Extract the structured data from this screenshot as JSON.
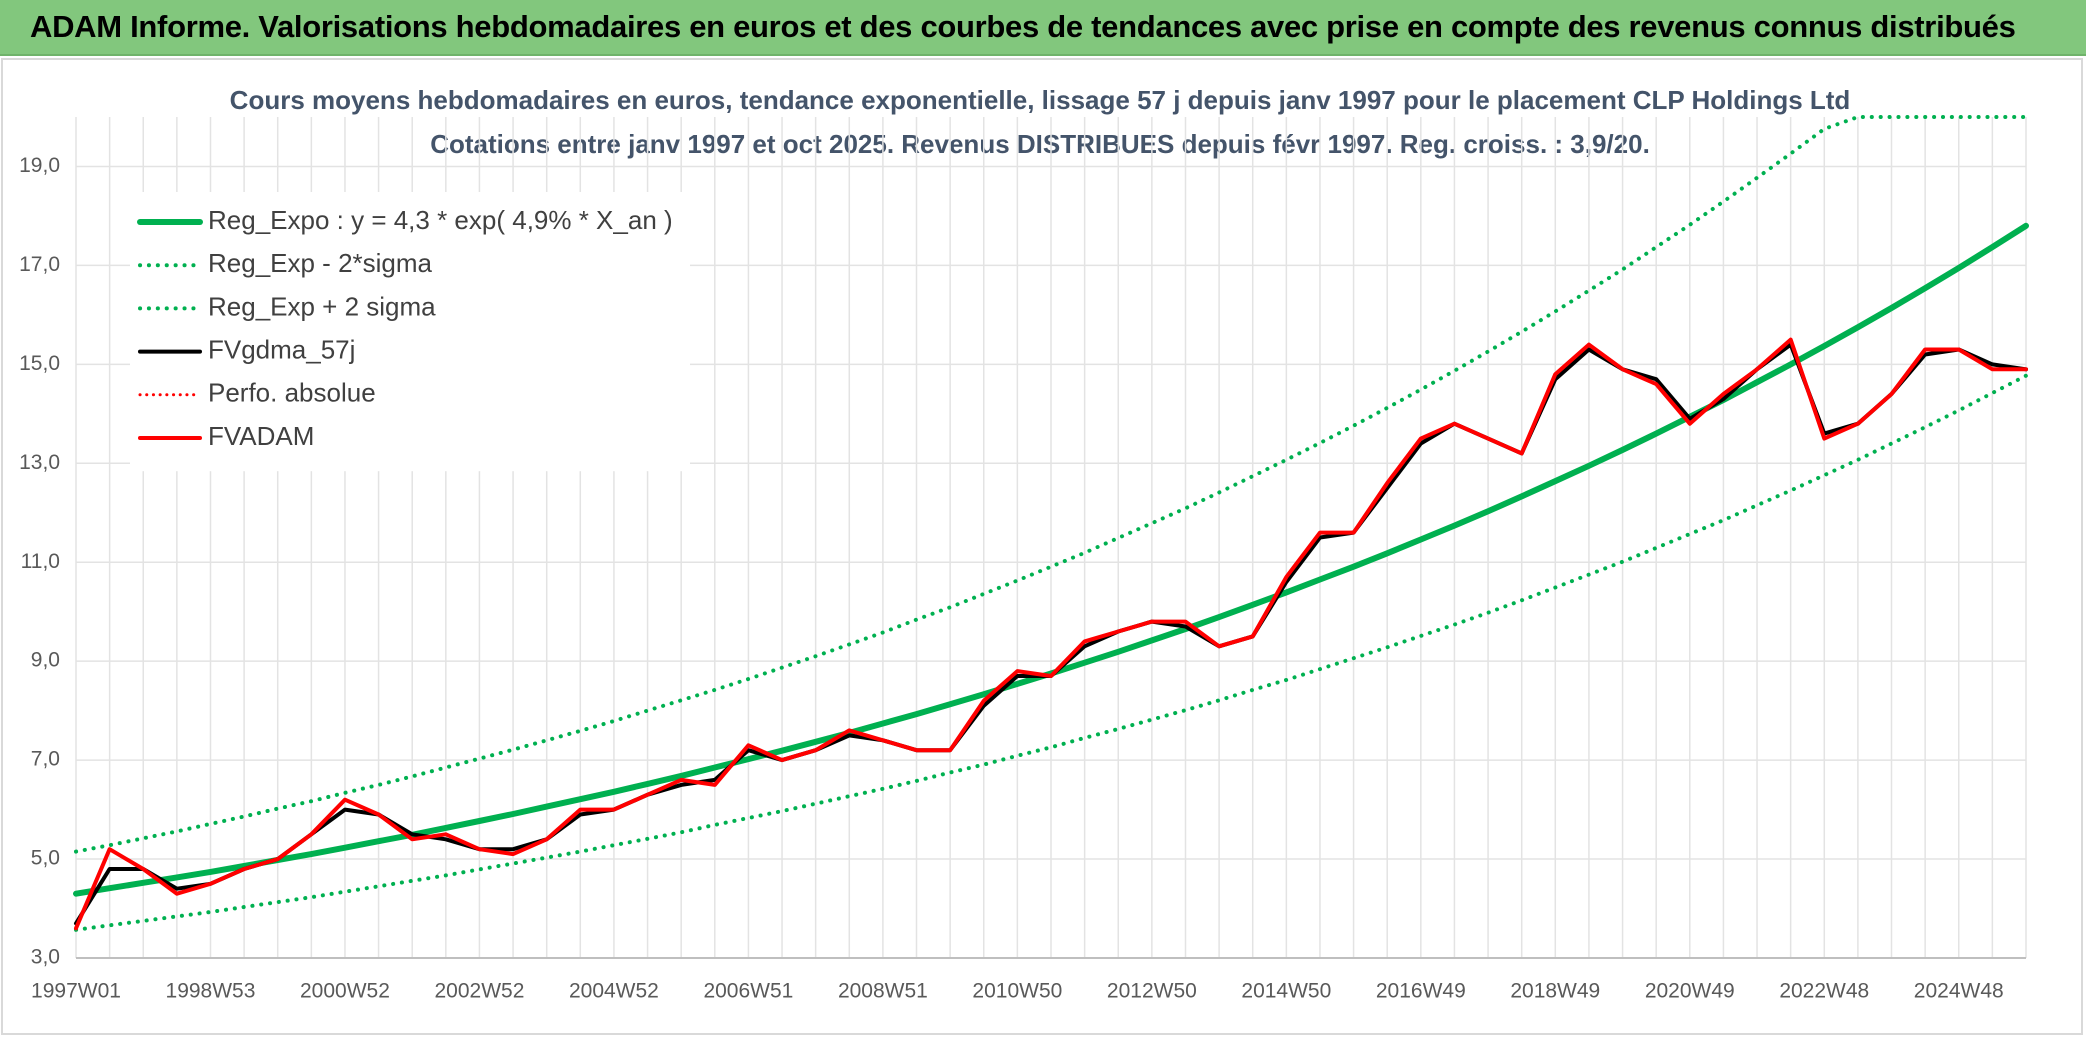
{
  "page_title": "ADAM Informe. Valorisations hebdomadaires en euros et des courbes de tendances avec prise en compte des revenus connus distribués",
  "chart_data": {
    "type": "line",
    "title": "Cours moyens hebdomadaires en euros, tendance exponentielle, lissage 57 j depuis janv 1997 pour le placement CLP Holdings Ltd",
    "subtitle": "Cotations entre janv 1997 et oct 2025. Revenus DISTRIBUES depuis févr 1997. Reg. croiss. : 3,9/20.",
    "categories": [
      "1997W01",
      null,
      null,
      null,
      "1998W53",
      null,
      null,
      null,
      "2000W52",
      null,
      null,
      null,
      "2002W52",
      null,
      null,
      null,
      "2004W52",
      null,
      null,
      null,
      "2006W51",
      null,
      null,
      null,
      "2008W51",
      null,
      null,
      null,
      "2010W50",
      null,
      null,
      null,
      "2012W50",
      null,
      null,
      null,
      "2014W50",
      null,
      null,
      null,
      "2016W49",
      null,
      null,
      null,
      "2018W49",
      null,
      null,
      null,
      "2020W49",
      null,
      null,
      null,
      "2022W48",
      null,
      null,
      null,
      "2024W48",
      null,
      null
    ],
    "ylim": [
      3,
      20
    ],
    "yticks": [
      {
        "value": 3,
        "label": "3,0"
      },
      {
        "value": 5,
        "label": "5,0"
      },
      {
        "value": 7,
        "label": "7,0"
      },
      {
        "value": 9,
        "label": "9,0"
      },
      {
        "value": 11,
        "label": "11,0"
      },
      {
        "value": 13,
        "label": "13,0"
      },
      {
        "value": 15,
        "label": "15,0"
      },
      {
        "value": 17,
        "label": "17,0"
      },
      {
        "value": 19,
        "label": "19,0"
      }
    ],
    "grid": true,
    "legend": "top-left",
    "series": [
      {
        "name": "Reg_Expo : y = 4,3 * exp( 4,9% *  X_an )",
        "color": "#00b050",
        "style": "solid",
        "width": 6,
        "values": [
          4.3,
          4.41,
          4.52,
          4.63,
          4.74,
          4.86,
          4.98,
          5.1,
          5.23,
          5.36,
          5.49,
          5.63,
          5.77,
          5.91,
          6.06,
          6.21,
          6.36,
          6.52,
          6.68,
          6.85,
          7.02,
          7.19,
          7.37,
          7.55,
          7.74,
          7.93,
          8.13,
          8.33,
          8.54,
          8.75,
          8.97,
          9.19,
          9.42,
          9.65,
          9.89,
          10.14,
          10.39,
          10.65,
          10.91,
          11.18,
          11.46,
          11.74,
          12.03,
          12.33,
          12.64,
          12.95,
          13.27,
          13.6,
          13.94,
          14.28,
          14.64,
          15.0,
          15.37,
          15.75,
          16.14,
          16.54,
          16.95,
          17.37,
          17.8
        ]
      },
      {
        "name": "Reg_Exp - 2*sigma",
        "color": "#00b050",
        "style": "dotted",
        "width": 4,
        "values": [
          3.57,
          3.66,
          3.75,
          3.84,
          3.93,
          4.03,
          4.13,
          4.23,
          4.34,
          4.45,
          4.56,
          4.67,
          4.79,
          4.91,
          5.03,
          5.15,
          5.28,
          5.41,
          5.54,
          5.69,
          5.83,
          5.97,
          6.12,
          6.27,
          6.42,
          6.58,
          6.75,
          6.91,
          7.09,
          7.26,
          7.45,
          7.63,
          7.82,
          8.01,
          8.21,
          8.42,
          8.62,
          8.84,
          9.06,
          9.28,
          9.51,
          9.74,
          9.98,
          10.23,
          10.49,
          10.75,
          11.01,
          11.29,
          11.57,
          11.85,
          12.15,
          12.45,
          12.76,
          13.07,
          13.4,
          13.73,
          14.07,
          14.42,
          14.77
        ]
      },
      {
        "name": "Reg_Exp + 2 sigma",
        "color": "#00b050",
        "style": "dotted",
        "width": 4,
        "values": [
          5.15,
          5.28,
          5.42,
          5.56,
          5.71,
          5.86,
          6.02,
          6.17,
          6.34,
          6.5,
          6.67,
          6.85,
          7.03,
          7.21,
          7.4,
          7.59,
          7.79,
          8.0,
          8.21,
          8.42,
          8.64,
          8.87,
          9.1,
          9.34,
          9.58,
          9.84,
          10.09,
          10.36,
          10.63,
          10.91,
          11.19,
          11.49,
          11.79,
          12.09,
          12.41,
          12.74,
          13.07,
          13.41,
          13.76,
          14.12,
          14.49,
          14.87,
          15.26,
          15.66,
          16.07,
          16.49,
          16.92,
          17.37,
          17.82,
          18.29,
          18.77,
          19.26,
          19.76,
          20,
          20,
          20,
          20,
          20,
          20
        ]
      },
      {
        "name": "FVgdma_57j",
        "color": "#000000",
        "style": "solid",
        "width": 4,
        "values": [
          3.7,
          4.8,
          4.8,
          4.4,
          4.5,
          4.8,
          5.0,
          5.5,
          6.0,
          5.9,
          5.5,
          5.4,
          5.2,
          5.2,
          5.4,
          5.9,
          6.0,
          6.3,
          6.5,
          6.6,
          7.2,
          7.0,
          7.2,
          7.5,
          7.4,
          7.2,
          7.2,
          8.1,
          8.7,
          8.7,
          9.3,
          9.6,
          9.8,
          9.7,
          9.3,
          9.5,
          10.6,
          11.5,
          11.6,
          12.5,
          13.4,
          13.8,
          13.5,
          13.2,
          14.7,
          15.3,
          14.9,
          14.7,
          13.9,
          14.3,
          14.9,
          15.4,
          13.6,
          13.8,
          14.4,
          15.2,
          15.3,
          15.0,
          14.9
        ]
      },
      {
        "name": "Perfo. absolue",
        "color": "#ff0000",
        "style": "dotted",
        "width": 3,
        "values": [
          3.6,
          5.2,
          4.8,
          4.3,
          4.5,
          4.8,
          5.0,
          5.5,
          6.2,
          5.9,
          5.4,
          5.5,
          5.2,
          5.1,
          5.4,
          6.0,
          6.0,
          6.3,
          6.6,
          6.5,
          7.3,
          7.0,
          7.2,
          7.6,
          7.4,
          7.2,
          7.2,
          8.2,
          8.8,
          8.7,
          9.4,
          9.6,
          9.8,
          9.8,
          9.3,
          9.5,
          10.7,
          11.6,
          11.6,
          12.6,
          13.5,
          13.8,
          13.5,
          13.2,
          14.8,
          15.4,
          14.9,
          14.6,
          13.8,
          14.4,
          14.9,
          15.5,
          13.5,
          13.8,
          14.4,
          15.3,
          15.3,
          14.9,
          14.9
        ]
      },
      {
        "name": "FVADAM",
        "color": "#ff0000",
        "style": "solid",
        "width": 4,
        "values": [
          3.6,
          5.2,
          4.8,
          4.3,
          4.5,
          4.8,
          5.0,
          5.5,
          6.2,
          5.9,
          5.4,
          5.5,
          5.2,
          5.1,
          5.4,
          6.0,
          6.0,
          6.3,
          6.6,
          6.5,
          7.3,
          7.0,
          7.2,
          7.6,
          7.4,
          7.2,
          7.2,
          8.2,
          8.8,
          8.7,
          9.4,
          9.6,
          9.8,
          9.8,
          9.3,
          9.5,
          10.7,
          11.6,
          11.6,
          12.6,
          13.5,
          13.8,
          13.5,
          13.2,
          14.8,
          15.4,
          14.9,
          14.6,
          13.8,
          14.4,
          14.9,
          15.5,
          13.5,
          13.8,
          14.4,
          15.3,
          15.3,
          14.9,
          14.9
        ]
      }
    ]
  }
}
